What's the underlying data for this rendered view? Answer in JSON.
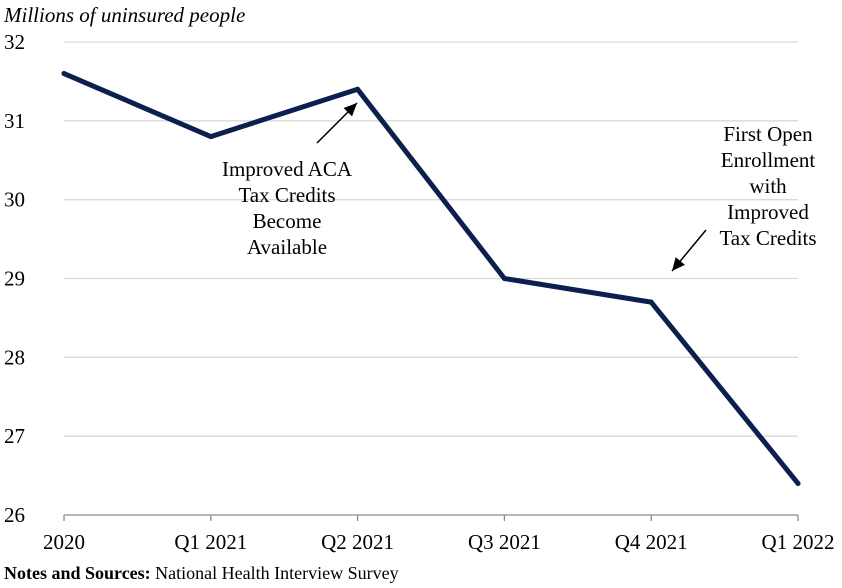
{
  "chart_data": {
    "type": "line",
    "ylabel": "Millions of uninsured people",
    "categories": [
      "2020",
      "Q1 2021",
      "Q2 2021",
      "Q3 2021",
      "Q4 2021",
      "Q1 2022"
    ],
    "series": [
      {
        "values": [
          31.6,
          30.8,
          31.4,
          29.0,
          28.7,
          26.4
        ],
        "color": "#0d1f4f"
      }
    ],
    "ylim": [
      26,
      32
    ],
    "yticks": [
      26,
      27,
      28,
      29,
      30,
      31,
      32
    ],
    "grid": true,
    "annotations": [
      {
        "lines": [
          "Improved ACA",
          "Tax Credits",
          "Become",
          "Available"
        ],
        "points_to": "Q2 2021"
      },
      {
        "lines": [
          "First Open",
          "Enrollment",
          "with",
          "Improved",
          "Tax Credits"
        ],
        "points_to": "Q4 2021"
      }
    ]
  },
  "notes": {
    "label": "Notes and Sources:",
    "text": " National Health Interview Survey"
  }
}
